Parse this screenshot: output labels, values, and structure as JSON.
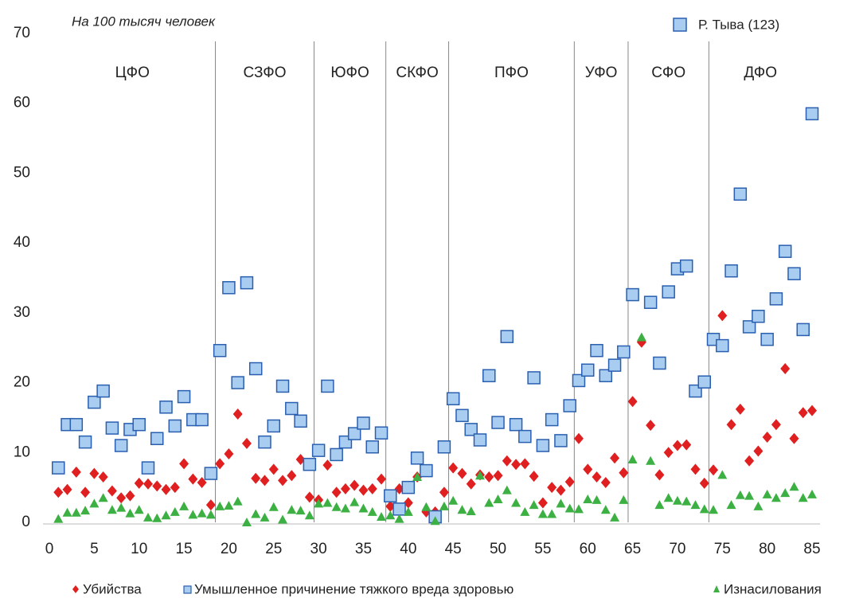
{
  "chart_data": {
    "type": "scatter",
    "subtitle": "На 100 тысяч человек",
    "annotation": "Р. Тыва (123)",
    "annotation_color": "#a8cdf0",
    "xlim": [
      0,
      85
    ],
    "xticks": [
      0,
      5,
      10,
      15,
      20,
      25,
      30,
      35,
      40,
      45,
      50,
      55,
      60,
      65,
      70,
      75,
      80,
      85
    ],
    "ylim": [
      0,
      70
    ],
    "yticks": [
      0,
      10,
      20,
      30,
      40,
      50,
      60,
      70
    ],
    "region_bounds": [
      18.5,
      29.5,
      37.5,
      44.5,
      58.5,
      64.5,
      73.5
    ],
    "region_labels": [
      "ЦФО",
      "СЗФО",
      "ЮФО",
      "СКФО",
      "ПФО",
      "УФО",
      "СФО",
      "ДФО"
    ],
    "x": [
      1,
      2,
      3,
      4,
      5,
      6,
      7,
      8,
      9,
      10,
      11,
      12,
      13,
      14,
      15,
      16,
      17,
      18,
      19,
      20,
      21,
      22,
      23,
      24,
      25,
      26,
      27,
      28,
      29,
      30,
      31,
      32,
      33,
      34,
      35,
      36,
      37,
      38,
      39,
      40,
      41,
      42,
      43,
      44,
      45,
      46,
      47,
      48,
      49,
      50,
      51,
      52,
      53,
      54,
      55,
      56,
      57,
      58,
      59,
      60,
      61,
      62,
      63,
      64,
      65,
      66,
      67,
      68,
      69,
      70,
      71,
      72,
      73,
      74,
      75,
      76,
      77,
      78,
      79,
      80,
      81,
      82,
      83,
      84,
      85
    ],
    "series": [
      {
        "name": "Убийства",
        "color": "#e02020",
        "marker": "diamond",
        "values": [
          4.3,
          4.7,
          7.2,
          4.3,
          7,
          6.5,
          4.5,
          3.5,
          3.8,
          5.6,
          5.5,
          5.2,
          4.7,
          5,
          8.4,
          6.2,
          5.7,
          2.5,
          8.4,
          9.8,
          15.5,
          11.3,
          6.3,
          6,
          7.6,
          6,
          6.7,
          9,
          3.6,
          3.2,
          8.2,
          4.3,
          4.8,
          5.3,
          4.6,
          4.8,
          6.2,
          2.3,
          4.8,
          2.8,
          6.5,
          1.5,
          1.5,
          4.3,
          7.8,
          7,
          5.5,
          6.8,
          6.5,
          6.7,
          8.8,
          8.3,
          8.4,
          6.6,
          2.8,
          5,
          4.6,
          5.8,
          12,
          7.6,
          6.5,
          5.7,
          9.2,
          7.1,
          17.3,
          25.8,
          13.9,
          6.8,
          10,
          11,
          11.1,
          7.6,
          5.6,
          7.5,
          29.6,
          14,
          16.2,
          8.8,
          10.2,
          12.2,
          14,
          22,
          12,
          15.7,
          16
        ]
      },
      {
        "name": "Умышленное причинение тяжкого вреда здоровью",
        "color": "#a8cdf0",
        "marker": "square",
        "values": [
          7.8,
          14,
          14,
          11.5,
          17.2,
          18.8,
          13.5,
          11,
          13.3,
          14,
          7.8,
          12,
          16.5,
          13.8,
          18,
          14.7,
          14.7,
          7,
          24.6,
          33.6,
          20,
          34.3,
          22,
          11.5,
          13.8,
          19.5,
          16.3,
          14.5,
          8.3,
          10.3,
          19.5,
          9.7,
          11.5,
          12.7,
          14.2,
          10.8,
          12.8,
          3.8,
          1.9,
          5,
          9.2,
          7.4,
          0.8,
          10.8,
          17.7,
          15.3,
          13.3,
          11.8,
          21,
          14.3,
          26.6,
          14,
          12.3,
          20.7,
          11,
          14.7,
          11.7,
          16.7,
          20.3,
          21.8,
          24.6,
          21,
          22.5,
          24.4,
          32.6,
          null,
          31.5,
          22.8,
          33,
          36.3,
          36.7,
          18.8,
          20.1,
          26.2,
          25.3,
          36,
          47,
          28,
          29.5,
          26.2,
          32,
          38.8,
          35.6,
          27.6,
          58.5
        ]
      },
      {
        "name": "Изнасилования",
        "color": "#3cb043",
        "marker": "triangle",
        "values": [
          0.5,
          1.4,
          1.4,
          1.7,
          2.7,
          3.5,
          1.8,
          2.1,
          1.3,
          1.8,
          0.7,
          0.6,
          1,
          1.5,
          2.3,
          1.1,
          1.3,
          1.1,
          2.3,
          2.4,
          3,
          0,
          1.2,
          0.7,
          2.2,
          0.4,
          1.8,
          1.7,
          1,
          2.7,
          2.8,
          2.2,
          2,
          2.9,
          2,
          1.5,
          0.8,
          1,
          0.5,
          1.5,
          6.5,
          2.2,
          0.2,
          2.3,
          3.1,
          1.8,
          1.6,
          6.7,
          2.8,
          3.3,
          4.6,
          2.8,
          1.5,
          2.5,
          1.2,
          1.2,
          2.7,
          2,
          1.9,
          3.3,
          3.2,
          1.8,
          0.7,
          3.2,
          9,
          26.5,
          8.8,
          2.5,
          3.5,
          3.1,
          3,
          2.5,
          1.9,
          1.8,
          6.8,
          2.5,
          3.9,
          3.8,
          2.3,
          4,
          3.5,
          4.2,
          5.1,
          3.5,
          4
        ]
      }
    ]
  }
}
